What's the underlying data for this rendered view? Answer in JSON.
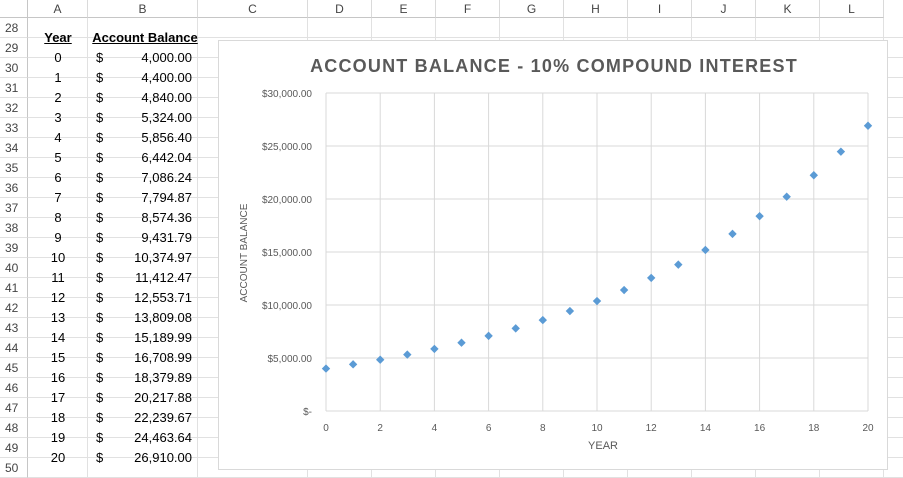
{
  "columns": [
    "A",
    "B",
    "C",
    "D",
    "E",
    "F",
    "G",
    "H",
    "I",
    "J",
    "K",
    "L"
  ],
  "rows": [
    "28",
    "29",
    "30",
    "31",
    "32",
    "33",
    "34",
    "35",
    "36",
    "37",
    "38",
    "39",
    "40",
    "41",
    "42",
    "43",
    "44",
    "45",
    "46",
    "47",
    "48",
    "49",
    "50"
  ],
  "table": {
    "header_year": "Year",
    "header_balance": "Account Balance",
    "currency": "$",
    "data": [
      {
        "year": "0",
        "balance": "4,000.00"
      },
      {
        "year": "1",
        "balance": "4,400.00"
      },
      {
        "year": "2",
        "balance": "4,840.00"
      },
      {
        "year": "3",
        "balance": "5,324.00"
      },
      {
        "year": "4",
        "balance": "5,856.40"
      },
      {
        "year": "5",
        "balance": "6,442.04"
      },
      {
        "year": "6",
        "balance": "7,086.24"
      },
      {
        "year": "7",
        "balance": "7,794.87"
      },
      {
        "year": "8",
        "balance": "8,574.36"
      },
      {
        "year": "9",
        "balance": "9,431.79"
      },
      {
        "year": "10",
        "balance": "10,374.97"
      },
      {
        "year": "11",
        "balance": "11,412.47"
      },
      {
        "year": "12",
        "balance": "12,553.71"
      },
      {
        "year": "13",
        "balance": "13,809.08"
      },
      {
        "year": "14",
        "balance": "15,189.99"
      },
      {
        "year": "15",
        "balance": "16,708.99"
      },
      {
        "year": "16",
        "balance": "18,379.89"
      },
      {
        "year": "17",
        "balance": "20,217.88"
      },
      {
        "year": "18",
        "balance": "22,239.67"
      },
      {
        "year": "19",
        "balance": "24,463.64"
      },
      {
        "year": "20",
        "balance": "26,910.00"
      }
    ]
  },
  "chart_data": {
    "type": "scatter",
    "title": "ACCOUNT BALANCE - 10% COMPOUND INTEREST",
    "xlabel": "YEAR",
    "ylabel": "ACCOUNT BALANCE",
    "xlim": [
      0,
      20
    ],
    "ylim": [
      0,
      30000
    ],
    "x_ticks": [
      "0",
      "2",
      "4",
      "6",
      "8",
      "10",
      "12",
      "14",
      "16",
      "18",
      "20"
    ],
    "y_ticks": [
      "$-",
      "$5,000.00",
      "$10,000.00",
      "$15,000.00",
      "$20,000.00",
      "$25,000.00",
      "$30,000.00"
    ],
    "grid": true,
    "marker_color": "#5b9bd5",
    "x": [
      0,
      1,
      2,
      3,
      4,
      5,
      6,
      7,
      8,
      9,
      10,
      11,
      12,
      13,
      14,
      15,
      16,
      17,
      18,
      19,
      20
    ],
    "y": [
      4000,
      4400,
      4840,
      5324,
      5856.4,
      6442.04,
      7086.24,
      7794.87,
      8574.36,
      9431.79,
      10374.97,
      11412.47,
      12553.71,
      13809.08,
      15189.99,
      16708.99,
      18379.89,
      20217.88,
      22239.67,
      24463.64,
      26910
    ]
  }
}
